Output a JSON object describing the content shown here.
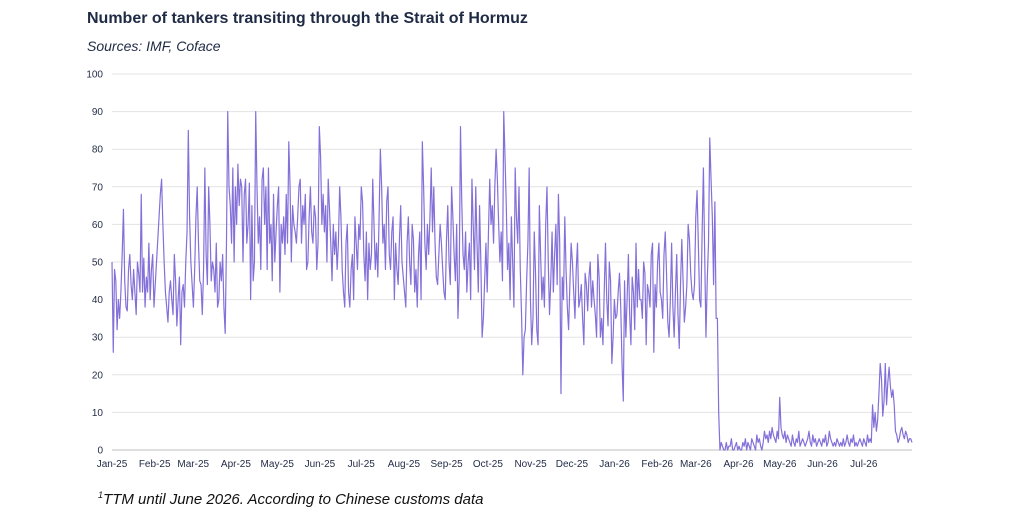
{
  "chart_data": {
    "type": "line",
    "title": "Number of tankers transiting through the Strait of Hormuz",
    "subtitle": "Sources: IMF, Coface",
    "footnote_mark": "1",
    "footnote": "TTM until June 2026. According to Chinese customs data",
    "xlabel": "",
    "ylabel": "",
    "ylim": [
      0,
      100
    ],
    "y_ticks": [
      0,
      10,
      20,
      30,
      40,
      50,
      60,
      70,
      80,
      90,
      100
    ],
    "x_tick_labels": [
      "Jan-25",
      "Feb-25",
      "Mar-25",
      "Apr-25",
      "May-25",
      "Jun-25",
      "Jul-25",
      "Aug-25",
      "Sep-25",
      "Oct-25",
      "Nov-25",
      "Dec-25",
      "Jan-26",
      "Feb-26",
      "Mar-26",
      "Apr-26",
      "May-26",
      "Jun-26",
      "Jul-26"
    ],
    "grid": true,
    "line_color": "#8470d8",
    "series": [
      {
        "x_start": "2025-01-01",
        "x_end": "2026-08-05",
        "interval": "daily",
        "values": [
          50,
          26,
          48,
          45,
          32,
          40,
          35,
          42,
          52,
          64,
          45,
          38,
          37,
          48,
          52,
          44,
          40,
          48,
          42,
          36,
          50,
          47,
          42,
          68,
          42,
          51,
          38,
          46,
          42,
          55,
          40,
          48,
          52,
          38,
          44,
          50,
          56,
          62,
          68,
          72,
          60,
          50,
          42,
          38,
          34,
          42,
          45,
          40,
          36,
          52,
          45,
          33,
          40,
          46,
          28,
          42,
          44,
          38,
          50,
          58,
          85,
          62,
          50,
          44,
          38,
          48,
          62,
          70,
          55,
          45,
          44,
          36,
          48,
          75,
          52,
          44,
          70,
          60,
          45,
          50,
          48,
          42,
          55,
          38,
          40,
          50,
          45,
          52,
          38,
          31,
          55,
          90,
          70,
          65,
          55,
          75,
          50,
          70,
          60,
          76,
          65,
          72,
          70,
          50,
          68,
          72,
          55,
          60,
          71,
          40,
          65,
          45,
          50,
          90,
          70,
          55,
          62,
          48,
          72,
          75,
          60,
          70,
          48,
          75,
          55,
          60,
          45,
          68,
          50,
          58,
          65,
          70,
          42,
          60,
          55,
          62,
          52,
          68,
          55,
          82,
          70,
          50,
          65,
          60,
          58,
          55,
          62,
          70,
          72,
          55,
          65,
          60,
          68,
          48,
          50,
          62,
          70,
          58,
          55,
          65,
          62,
          48,
          55,
          86,
          78,
          60,
          68,
          58,
          65,
          50,
          72,
          64,
          55,
          45,
          60,
          52,
          58,
          48,
          55,
          70,
          62,
          48,
          42,
          38,
          55,
          60,
          42,
          38,
          48,
          52,
          40,
          62,
          55,
          48,
          60,
          56,
          70,
          66,
          52,
          45,
          58,
          40,
          55,
          48,
          52,
          72,
          60,
          48,
          55,
          46,
          62,
          80,
          70,
          55,
          60,
          48,
          66,
          70,
          52,
          48,
          58,
          62,
          40,
          55,
          48,
          44,
          56,
          65,
          50,
          46,
          42,
          38,
          55,
          62,
          50,
          44,
          60,
          56,
          42,
          48,
          38,
          52,
          58,
          40,
          82,
          70,
          55,
          48,
          60,
          52,
          62,
          75,
          58,
          70,
          55,
          46,
          44,
          52,
          60,
          55,
          48,
          42,
          40,
          56,
          65,
          50,
          44,
          70,
          62,
          52,
          45,
          60,
          35,
          46,
          86,
          66,
          52,
          48,
          58,
          42,
          50,
          55,
          40,
          72,
          60,
          48,
          70,
          55,
          42,
          65,
          50,
          30,
          35,
          45,
          55,
          42,
          58,
          72,
          60,
          65,
          55,
          70,
          80,
          72,
          60,
          50,
          58,
          45,
          90,
          78,
          65,
          48,
          55,
          40,
          62,
          50,
          38,
          75,
          62,
          55,
          70,
          48,
          36,
          20,
          30,
          32,
          45,
          55,
          75,
          40,
          28,
          35,
          58,
          47,
          32,
          28,
          65,
          52,
          40,
          46,
          38,
          60,
          70,
          50,
          36,
          45,
          58,
          42,
          52,
          60,
          44,
          68,
          55,
          15,
          46,
          40,
          62,
          48,
          38,
          32,
          44,
          55,
          50,
          42,
          35,
          48,
          55,
          38,
          40,
          44,
          35,
          28,
          47,
          44,
          37,
          46,
          50,
          38,
          45,
          40,
          36,
          30,
          52,
          46,
          30,
          35,
          28,
          42,
          55,
          40,
          33,
          50,
          45,
          23,
          30,
          40,
          35,
          36,
          42,
          47,
          38,
          23,
          13,
          45,
          30,
          40,
          52,
          36,
          28,
          46,
          42,
          32,
          55,
          38,
          48,
          40,
          40,
          35,
          50,
          47,
          28,
          44,
          42,
          38,
          52,
          55,
          26,
          44,
          38,
          50,
          55,
          42,
          40,
          35,
          52,
          58,
          47,
          34,
          30,
          40,
          55,
          38,
          30,
          42,
          52,
          36,
          27,
          44,
          56,
          45,
          34,
          38,
          44,
          60,
          56,
          47,
          42,
          40,
          44,
          62,
          69,
          55,
          40,
          38,
          58,
          75,
          52,
          30,
          45,
          55,
          83,
          72,
          62,
          44,
          66,
          35,
          35,
          10,
          0,
          2,
          1,
          0,
          0,
          2,
          0,
          1,
          1,
          3,
          0,
          0,
          1,
          2,
          0,
          1,
          0,
          0,
          2,
          1,
          3,
          0,
          2,
          1,
          0,
          3,
          2,
          1,
          0,
          4,
          2,
          3,
          1,
          0,
          2,
          5,
          3,
          4,
          2,
          5,
          3,
          6,
          4,
          3,
          2,
          5,
          3,
          14,
          6,
          4,
          3,
          5,
          2,
          4,
          3,
          2,
          1,
          4,
          2,
          1,
          3,
          2,
          5,
          1,
          2,
          3,
          2,
          1,
          2,
          3,
          5,
          2,
          1,
          4,
          2,
          3,
          1,
          2,
          3,
          2,
          1,
          3,
          2,
          4,
          1,
          2,
          5,
          3,
          2,
          1,
          2,
          1,
          3,
          2,
          1,
          2,
          1,
          3,
          1,
          2,
          4,
          2,
          1,
          3,
          2,
          4,
          1,
          2,
          1,
          2,
          3,
          2,
          1,
          3,
          2,
          1,
          4,
          2,
          3,
          2,
          12,
          6,
          10,
          5,
          8,
          15,
          23,
          19,
          9,
          13,
          23,
          12,
          18,
          22,
          17,
          14,
          16,
          12,
          5,
          4,
          2,
          3,
          5,
          6,
          4,
          3,
          5,
          4,
          2,
          3,
          3,
          2
        ]
      }
    ]
  }
}
